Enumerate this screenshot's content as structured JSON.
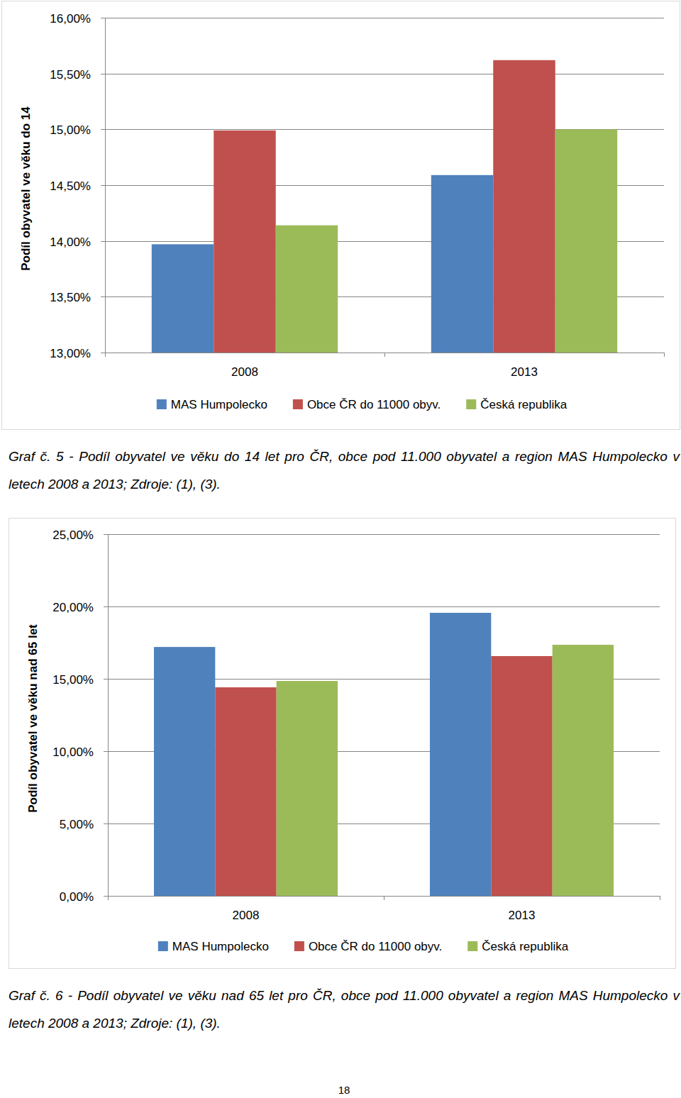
{
  "chart_data": [
    {
      "type": "bar",
      "y_label": "Podíl obyvatel ve věku do 14",
      "categories": [
        "2008",
        "2013"
      ],
      "series": [
        {
          "name": "MAS Humpolecko",
          "color": "#4f81bd",
          "values": [
            13.97,
            14.59
          ]
        },
        {
          "name": "Obce ČR do 11000 obyv.",
          "color": "#c0504d",
          "values": [
            14.99,
            15.62
          ]
        },
        {
          "name": "Česká republika",
          "color": "#9bbb59",
          "values": [
            14.14,
            15.0
          ]
        }
      ],
      "ylim": [
        13,
        16
      ],
      "yticks": [
        {
          "value": 13,
          "label": "13,00%"
        },
        {
          "value": 13.5,
          "label": "13,50%"
        },
        {
          "value": 14,
          "label": "14,00%"
        },
        {
          "value": 14.5,
          "label": "14,50%"
        },
        {
          "value": 15,
          "label": "15,00%"
        },
        {
          "value": 15.5,
          "label": "15,50%"
        },
        {
          "value": 16,
          "label": "16,00%"
        }
      ],
      "grid": true,
      "legend": "bottom"
    },
    {
      "type": "bar",
      "y_label": "Podíl obyvatel ve věku nad 65 let",
      "categories": [
        "2008",
        "2013"
      ],
      "series": [
        {
          "name": "MAS Humpolecko",
          "color": "#4f81bd",
          "values": [
            17.2,
            19.56
          ]
        },
        {
          "name": "Obce ČR do 11000 obyv.",
          "color": "#c0504d",
          "values": [
            14.41,
            16.57
          ]
        },
        {
          "name": "Česká republika",
          "color": "#9bbb59",
          "values": [
            14.85,
            17.35
          ]
        }
      ],
      "ylim": [
        0,
        25
      ],
      "yticks": [
        {
          "value": 0,
          "label": "0,00%"
        },
        {
          "value": 5,
          "label": "5,00%"
        },
        {
          "value": 10,
          "label": "10,00%"
        },
        {
          "value": 15,
          "label": "15,00%"
        },
        {
          "value": 20,
          "label": "20,00%"
        },
        {
          "value": 25,
          "label": "25,00%"
        }
      ],
      "grid": true,
      "legend": "bottom"
    }
  ],
  "captions": [
    "Graf č. 5 - Podíl obyvatel ve věku do 14 let pro ČR, obce pod 11.000 obyvatel a region MAS Humpolecko v letech 2008 a 2013; Zdroje: (1), (3).",
    "Graf č. 6 - Podíl obyvatel ve věku nad 65 let pro ČR, obce pod 11.000 obyvatel a region MAS Humpolecko v letech 2008 a 2013; Zdroje: (1), (3)."
  ],
  "page_number": "18"
}
